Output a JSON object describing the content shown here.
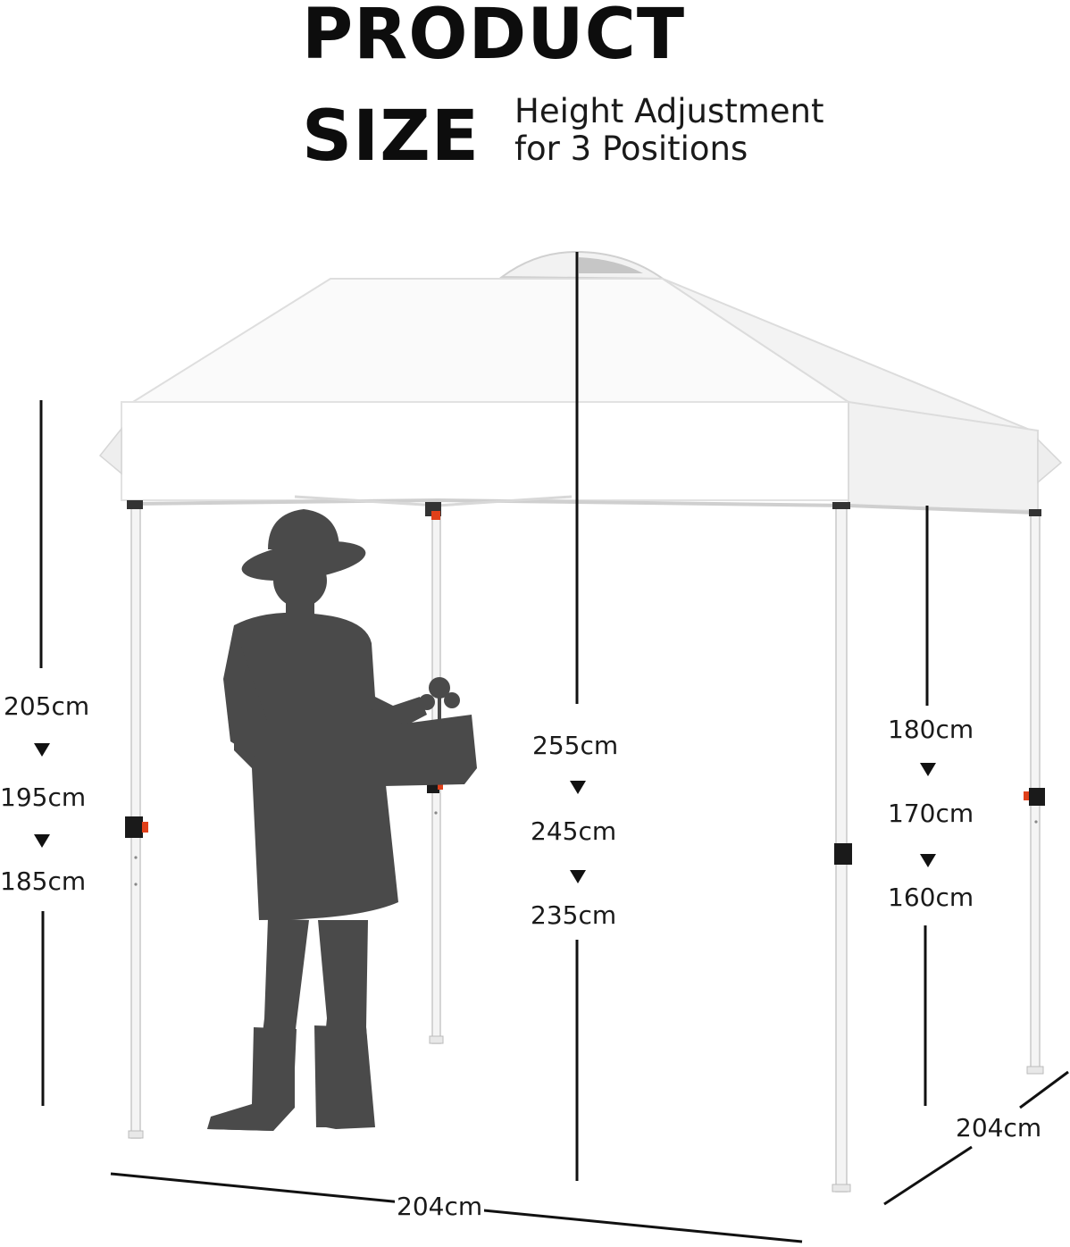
{
  "header": {
    "title_line1": "PRODUCT",
    "title_line2": "SIZE",
    "subtitle_line1": "Height Adjustment",
    "subtitle_line2": "for 3 Positions"
  },
  "dimensions": {
    "overall_height": [
      "205cm",
      "195cm",
      "185cm"
    ],
    "peak_height": [
      "255cm",
      "245cm",
      "235cm"
    ],
    "eave_height": [
      "180cm",
      "170cm",
      "160cm"
    ],
    "width": "204cm",
    "depth": "204cm"
  },
  "colors": {
    "canopy": "#ffffff",
    "canopy_shade": "#ececec",
    "silhouette": "#4a4a4a",
    "lock_accent": "#e0401a",
    "text": "#111111"
  },
  "icons": [
    "down-triangle-icon",
    "person-silhouette-icon",
    "canopy-tent-icon"
  ]
}
